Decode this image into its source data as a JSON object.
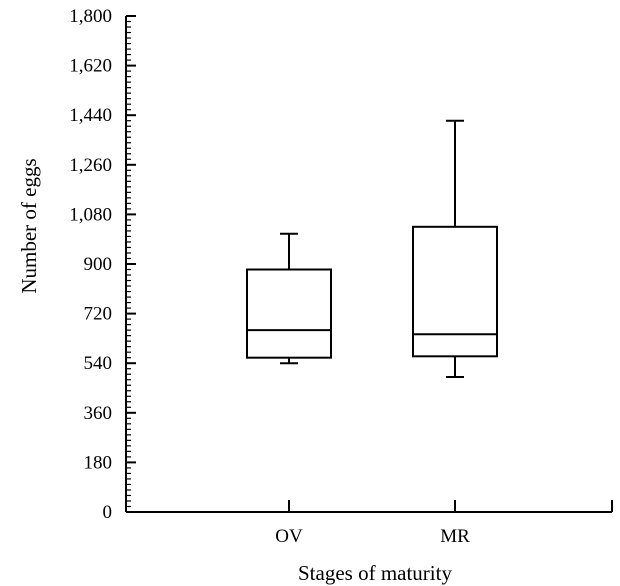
{
  "chart_data": {
    "type": "box",
    "title": "",
    "xlabel": "Stages of maturity",
    "ylabel": "Number of eggs",
    "ylim": [
      0,
      1800
    ],
    "yticks": [
      0,
      180,
      360,
      540,
      720,
      900,
      1080,
      1260,
      1440,
      1620,
      1800
    ],
    "ytick_labels": [
      "0",
      "180",
      "360",
      "540",
      "720",
      "900",
      "1,080",
      "1,260",
      "1,440",
      "1,620",
      "1,800"
    ],
    "minor_tick_step": 20,
    "grid": false,
    "categories": [
      "OV",
      "MR"
    ],
    "boxes": [
      {
        "category": "OV",
        "whisker_low": 540,
        "q1": 560,
        "median": 660,
        "q3": 880,
        "whisker_high": 1010
      },
      {
        "category": "MR",
        "whisker_low": 490,
        "q1": 565,
        "median": 645,
        "q3": 1035,
        "whisker_high": 1420
      }
    ]
  }
}
